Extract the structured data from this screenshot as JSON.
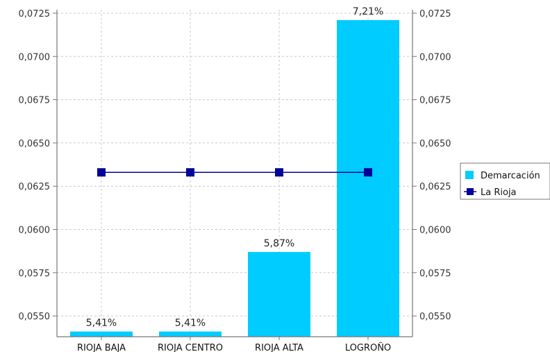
{
  "chart_data": {
    "type": "bar",
    "categories": [
      "RIOJA BAJA",
      "RIOJA CENTRO",
      "RIOJA ALTA",
      "LOGROÑO"
    ],
    "series": [
      {
        "name": "Demarcación",
        "kind": "bar",
        "color": "#00CCFF",
        "values": [
          0.0541,
          0.0541,
          0.0587,
          0.0721
        ],
        "labels": [
          "5,41%",
          "5,41%",
          "5,87%",
          "7,21%"
        ]
      },
      {
        "name": "La Rioja",
        "kind": "line",
        "color": "#000099",
        "values": [
          0.0633,
          0.0633,
          0.0633,
          0.0633
        ]
      }
    ],
    "ylim": [
      0.0538,
      0.0727
    ],
    "yticks": [
      "0,0550",
      "0,0575",
      "0,0600",
      "0,0625",
      "0,0650",
      "0,0675",
      "0,0700",
      "0,0725"
    ],
    "ytick_values": [
      0.055,
      0.0575,
      0.06,
      0.0625,
      0.065,
      0.0675,
      0.07,
      0.0725
    ],
    "right_axis": true,
    "grid": true,
    "legend_position": "right"
  }
}
